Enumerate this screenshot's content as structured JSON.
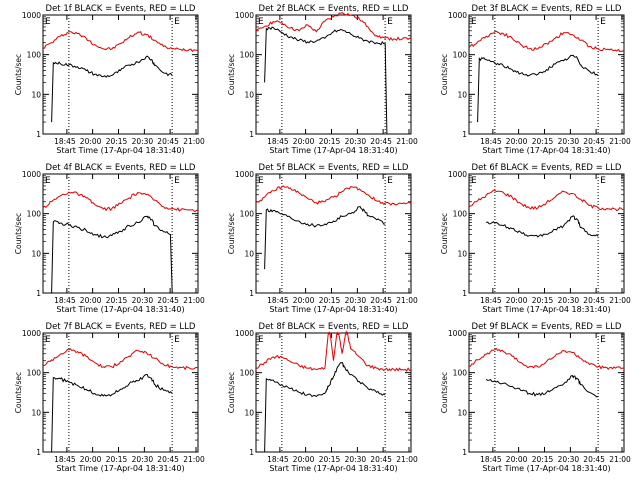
{
  "colors": {
    "events": "#000000",
    "lld": "#e00000",
    "axes": "#000000",
    "background": "#ffffff"
  },
  "xlabel": "Start Time (17-Apr-04 18:31:40)",
  "ylabel": "Counts/sec",
  "xtick_labels": [
    "18:45",
    "20:00",
    "20:15",
    "20:30",
    "20:45",
    "21:00"
  ],
  "ytick_labels": [
    "1",
    "10",
    "100",
    "1000"
  ],
  "marker_label": "E",
  "chart_data": [
    {
      "type": "line",
      "title": "Det 1f BLACK = Events, RED = LLD",
      "x_range_min": [
        0,
        90
      ],
      "y_scale": "log",
      "ylim": [
        1,
        1000
      ],
      "series": [
        {
          "key": "lld",
          "x": [
            0,
            5,
            10,
            15,
            20,
            25,
            30,
            35,
            40,
            45,
            50,
            55,
            60,
            65,
            70,
            75,
            80,
            85,
            90
          ],
          "y": [
            150,
            200,
            290,
            380,
            340,
            260,
            180,
            140,
            140,
            190,
            270,
            370,
            320,
            230,
            160,
            140,
            135,
            135,
            130
          ]
        },
        {
          "key": "events",
          "x": [
            5,
            6,
            10,
            15,
            20,
            25,
            30,
            35,
            40,
            45,
            50,
            55,
            60,
            63,
            65,
            70,
            75
          ],
          "y": [
            2,
            62,
            60,
            55,
            50,
            40,
            32,
            28,
            30,
            40,
            55,
            65,
            90,
            75,
            55,
            35,
            30
          ]
        }
      ]
    },
    {
      "type": "line",
      "title": "Det 2f BLACK = Events, RED = LLD",
      "x_range_min": [
        0,
        90
      ],
      "y_scale": "log",
      "ylim": [
        1,
        1000
      ],
      "series": [
        {
          "key": "lld",
          "x": [
            0,
            5,
            10,
            15,
            20,
            25,
            30,
            35,
            40,
            45,
            50,
            55,
            60,
            65,
            70,
            75,
            80,
            85,
            90
          ],
          "y": [
            380,
            520,
            680,
            640,
            470,
            400,
            560,
            380,
            700,
            900,
            1150,
            1000,
            800,
            500,
            300,
            260,
            250,
            250,
            250
          ]
        },
        {
          "key": "events",
          "x": [
            5,
            6,
            10,
            15,
            20,
            25,
            30,
            35,
            40,
            45,
            50,
            55,
            60,
            65,
            70,
            75,
            76
          ],
          "y": [
            20,
            450,
            480,
            360,
            280,
            230,
            210,
            220,
            260,
            380,
            420,
            330,
            260,
            220,
            200,
            190,
            1
          ]
        }
      ]
    },
    {
      "type": "line",
      "title": "Det 3f BLACK = Events, RED = LLD",
      "x_range_min": [
        0,
        90
      ],
      "y_scale": "log",
      "ylim": [
        1,
        1000
      ],
      "series": [
        {
          "key": "lld",
          "x": [
            0,
            5,
            10,
            15,
            20,
            25,
            30,
            35,
            40,
            45,
            50,
            55,
            60,
            65,
            70,
            75,
            80,
            85,
            90
          ],
          "y": [
            150,
            210,
            290,
            380,
            340,
            260,
            180,
            140,
            140,
            190,
            260,
            360,
            320,
            230,
            160,
            140,
            135,
            130,
            130
          ]
        },
        {
          "key": "events",
          "x": [
            5,
            6,
            10,
            15,
            20,
            25,
            30,
            35,
            40,
            45,
            50,
            55,
            60,
            63,
            65,
            70,
            75
          ],
          "y": [
            2,
            80,
            75,
            62,
            52,
            42,
            34,
            30,
            32,
            42,
            58,
            70,
            95,
            80,
            55,
            38,
            30
          ]
        }
      ]
    },
    {
      "type": "line",
      "title": "Det 4f BLACK = Events, RED = LLD",
      "x_range_min": [
        0,
        90
      ],
      "y_scale": "log",
      "ylim": [
        1,
        1000
      ],
      "series": [
        {
          "key": "lld",
          "x": [
            0,
            5,
            10,
            15,
            20,
            25,
            30,
            35,
            40,
            45,
            50,
            55,
            60,
            65,
            70,
            75,
            80,
            85,
            90
          ],
          "y": [
            140,
            200,
            280,
            350,
            320,
            250,
            170,
            130,
            135,
            180,
            250,
            340,
            300,
            220,
            150,
            135,
            125,
            125,
            120
          ]
        },
        {
          "key": "events",
          "x": [
            5,
            6,
            10,
            15,
            20,
            25,
            30,
            35,
            40,
            45,
            50,
            55,
            60,
            63,
            65,
            70,
            74,
            75
          ],
          "y": [
            1,
            62,
            58,
            52,
            45,
            38,
            30,
            26,
            28,
            36,
            50,
            60,
            85,
            70,
            50,
            35,
            30,
            1
          ]
        }
      ]
    },
    {
      "type": "line",
      "title": "Det 5f BLACK = Events, RED = LLD",
      "x_range_min": [
        0,
        90
      ],
      "y_scale": "log",
      "ylim": [
        1,
        1000
      ],
      "series": [
        {
          "key": "lld",
          "x": [
            0,
            5,
            10,
            15,
            20,
            25,
            30,
            35,
            40,
            45,
            50,
            55,
            60,
            65,
            70,
            75,
            80,
            85,
            90
          ],
          "y": [
            190,
            260,
            380,
            480,
            440,
            330,
            240,
            190,
            200,
            260,
            360,
            480,
            420,
            300,
            210,
            185,
            180,
            180,
            175
          ]
        },
        {
          "key": "events",
          "x": [
            5,
            6,
            10,
            15,
            20,
            25,
            30,
            35,
            40,
            45,
            50,
            55,
            60,
            63,
            65,
            70,
            75
          ],
          "y": [
            4,
            125,
            120,
            100,
            80,
            65,
            55,
            50,
            55,
            65,
            85,
            100,
            150,
            120,
            90,
            70,
            55
          ]
        }
      ]
    },
    {
      "type": "line",
      "title": "Det 6f BLACK = Events, RED = LLD",
      "x_range_min": [
        0,
        90
      ],
      "y_scale": "log",
      "ylim": [
        1,
        1000
      ],
      "series": [
        {
          "key": "lld",
          "x": [
            0,
            5,
            10,
            15,
            20,
            25,
            30,
            35,
            40,
            45,
            50,
            55,
            60,
            65,
            70,
            75,
            80,
            85,
            90
          ],
          "y": [
            150,
            210,
            290,
            380,
            340,
            260,
            180,
            140,
            140,
            190,
            260,
            360,
            320,
            230,
            160,
            140,
            135,
            130,
            130
          ]
        },
        {
          "key": "events",
          "x": [
            10,
            15,
            20,
            25,
            30,
            35,
            40,
            45,
            50,
            55,
            60,
            63,
            65,
            70,
            75
          ],
          "y": [
            60,
            58,
            50,
            42,
            34,
            28,
            26,
            30,
            40,
            50,
            85,
            70,
            45,
            30,
            27
          ]
        }
      ]
    },
    {
      "type": "line",
      "title": "Det 7f BLACK = Events, RED = LLD",
      "x_range_min": [
        0,
        90
      ],
      "y_scale": "log",
      "ylim": [
        1,
        1000
      ],
      "series": [
        {
          "key": "lld",
          "x": [
            0,
            5,
            10,
            15,
            20,
            25,
            30,
            35,
            40,
            45,
            50,
            55,
            60,
            65,
            70,
            75,
            80,
            85,
            90
          ],
          "y": [
            150,
            210,
            290,
            380,
            340,
            260,
            180,
            140,
            140,
            190,
            260,
            360,
            320,
            230,
            160,
            140,
            135,
            130,
            130
          ]
        },
        {
          "key": "events",
          "x": [
            5,
            6,
            10,
            15,
            20,
            25,
            30,
            35,
            40,
            45,
            50,
            55,
            60,
            63,
            65,
            70,
            75
          ],
          "y": [
            1,
            75,
            70,
            58,
            48,
            38,
            30,
            26,
            28,
            38,
            52,
            62,
            90,
            72,
            50,
            36,
            30
          ]
        }
      ]
    },
    {
      "type": "line",
      "title": "Det 8f BLACK = Events, RED = LLD",
      "x_range_min": [
        0,
        90
      ],
      "y_scale": "log",
      "ylim": [
        1,
        1000
      ],
      "series": [
        {
          "key": "lld",
          "x": [
            0,
            5,
            10,
            15,
            20,
            25,
            30,
            35,
            40,
            42,
            43,
            45,
            47,
            48,
            50,
            52,
            53,
            55,
            60,
            65,
            70,
            75,
            80,
            85,
            90
          ],
          "y": [
            130,
            180,
            250,
            250,
            190,
            150,
            130,
            120,
            130,
            1000,
            1000,
            200,
            1000,
            1000,
            300,
            1000,
            1000,
            400,
            250,
            150,
            130,
            120,
            120,
            120,
            120
          ]
        },
        {
          "key": "events",
          "x": [
            5,
            6,
            10,
            15,
            20,
            25,
            30,
            35,
            40,
            42,
            45,
            48,
            50,
            52,
            55,
            60,
            65,
            70,
            75
          ],
          "y": [
            1,
            70,
            65,
            50,
            40,
            32,
            28,
            25,
            30,
            45,
            80,
            150,
            180,
            120,
            90,
            60,
            40,
            32,
            28
          ]
        }
      ]
    },
    {
      "type": "line",
      "title": "Det 9f BLACK = Events, RED = LLD",
      "x_range_min": [
        0,
        90
      ],
      "y_scale": "log",
      "ylim": [
        1,
        1000
      ],
      "series": [
        {
          "key": "lld",
          "x": [
            0,
            5,
            10,
            15,
            20,
            25,
            30,
            35,
            40,
            45,
            50,
            55,
            60,
            65,
            70,
            75,
            80,
            85,
            90
          ],
          "y": [
            150,
            210,
            290,
            380,
            340,
            260,
            180,
            140,
            140,
            190,
            260,
            360,
            320,
            230,
            160,
            140,
            135,
            130,
            130
          ]
        },
        {
          "key": "events",
          "x": [
            10,
            15,
            20,
            25,
            30,
            35,
            40,
            45,
            50,
            55,
            60,
            63,
            65,
            70,
            75
          ],
          "y": [
            68,
            62,
            54,
            45,
            36,
            30,
            28,
            32,
            42,
            52,
            85,
            70,
            50,
            32,
            25
          ]
        }
      ]
    }
  ]
}
